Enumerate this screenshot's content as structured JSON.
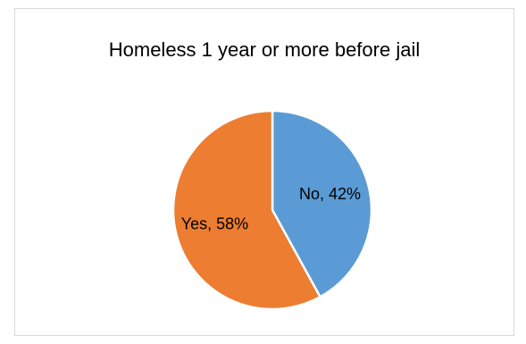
{
  "chart_data": {
    "type": "pie",
    "title": "Homeless 1 year or more before jail",
    "slices": [
      {
        "label": "No",
        "value": 42,
        "color": "#5b9bd5",
        "data_label": "No, 42%"
      },
      {
        "label": "Yes",
        "value": 58,
        "color": "#ed7d31",
        "data_label": "Yes, 58%"
      }
    ],
    "legend": "none",
    "start_angle_deg": 0,
    "direction": "clockwise"
  }
}
